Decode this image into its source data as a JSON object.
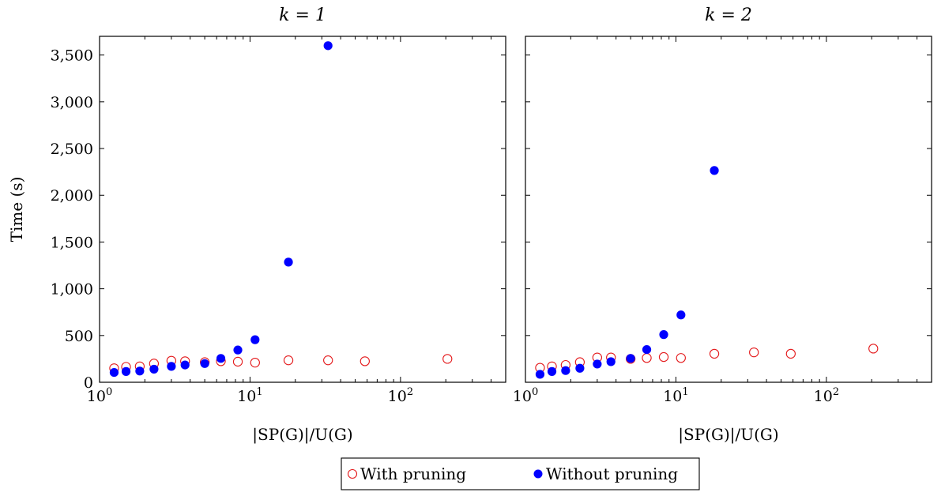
{
  "chart_data": [
    {
      "type": "scatter",
      "title": "k = 1",
      "xlabel": "|SP(G)|/U(G)",
      "ylabel": "Time (s)",
      "xscale": "log",
      "xlim": [
        1,
        500
      ],
      "ylim": [
        0,
        3700
      ],
      "xticks": [
        "10^0",
        "10^1",
        "10^2"
      ],
      "yticks": [
        0,
        500,
        1000,
        1500,
        2000,
        2500,
        3000,
        3500
      ],
      "ytick_labels": [
        "0",
        "500",
        "1,000",
        "1,500",
        "2,000",
        "2,500",
        "3,000",
        "3,500"
      ],
      "series": [
        {
          "name": "With pruning",
          "marker": "open-circle",
          "color": "#e41a1c",
          "x": [
            1.25,
            1.5,
            1.85,
            2.3,
            3.0,
            3.7,
            5.0,
            6.4,
            8.3,
            10.8,
            18.0,
            33.0,
            58.0,
            205.0
          ],
          "y": [
            150,
            165,
            170,
            200,
            230,
            225,
            215,
            225,
            220,
            210,
            235,
            235,
            225,
            250
          ]
        },
        {
          "name": "Without pruning",
          "marker": "filled-circle",
          "color": "#0000ff",
          "x": [
            1.25,
            1.5,
            1.85,
            2.3,
            3.0,
            3.7,
            5.0,
            6.4,
            8.3,
            10.8,
            18.0,
            33.0
          ],
          "y": [
            105,
            115,
            120,
            140,
            170,
            185,
            200,
            255,
            345,
            455,
            1285,
            3600
          ]
        }
      ]
    },
    {
      "type": "scatter",
      "title": "k = 2",
      "xlabel": "|SP(G)|/U(G)",
      "ylabel": "",
      "xscale": "log",
      "xlim": [
        1,
        500
      ],
      "ylim": [
        0,
        3700
      ],
      "xticks": [
        "10^0",
        "10^1",
        "10^2"
      ],
      "series": [
        {
          "name": "With pruning",
          "marker": "open-circle",
          "color": "#e41a1c",
          "x": [
            1.25,
            1.5,
            1.85,
            2.3,
            3.0,
            3.7,
            5.0,
            6.4,
            8.3,
            10.8,
            18.0,
            33.0,
            58.0,
            205.0
          ],
          "y": [
            155,
            170,
            185,
            215,
            265,
            265,
            250,
            260,
            270,
            260,
            305,
            320,
            305,
            360
          ]
        },
        {
          "name": "Without pruning",
          "marker": "filled-circle",
          "color": "#0000ff",
          "x": [
            1.25,
            1.5,
            1.85,
            2.3,
            3.0,
            3.7,
            5.0,
            6.4,
            8.3,
            10.8,
            18.0
          ],
          "y": [
            85,
            115,
            125,
            150,
            195,
            220,
            255,
            350,
            510,
            720,
            2265
          ]
        }
      ]
    }
  ],
  "legend": {
    "items": [
      {
        "label": "With pruning",
        "marker": "open-circle",
        "color": "#e41a1c"
      },
      {
        "label": "Without pruning",
        "marker": "filled-circle",
        "color": "#0000ff"
      }
    ],
    "placement": "bottom-center"
  }
}
